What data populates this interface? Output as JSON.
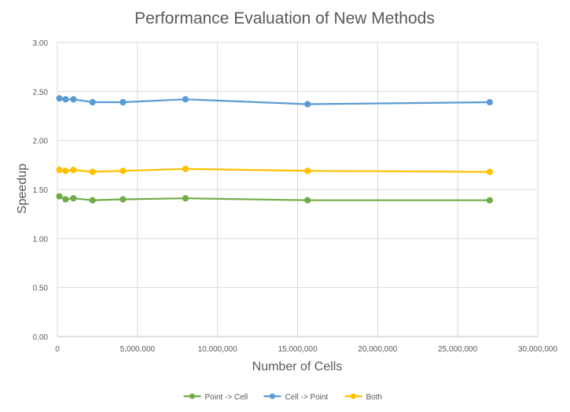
{
  "chart_data": {
    "type": "line",
    "title": "Performance Evaluation of New Methods",
    "xlabel": "Number of Cells",
    "ylabel": "Speedup",
    "xlim": [
      0,
      30000000
    ],
    "ylim": [
      0,
      3
    ],
    "x_ticks": [
      0,
      5000000,
      10000000,
      15000000,
      20000000,
      25000000,
      30000000
    ],
    "x_tick_labels": [
      "0",
      "5,000,000",
      "10,000,000",
      "15,000,000",
      "20,000,000",
      "25,000,000",
      "30,000,000"
    ],
    "y_ticks": [
      0,
      0.5,
      1,
      1.5,
      2,
      2.5,
      3
    ],
    "y_tick_labels": [
      "0.00",
      "0.50",
      "1.00",
      "1.50",
      "2.00",
      "2.50",
      "3.00"
    ],
    "grid": true,
    "legend_position": "bottom",
    "series": [
      {
        "name": "Point -> Cell",
        "color": "#70AD47",
        "x": [
          125000,
          512000,
          1000000,
          2197000,
          4096000,
          8000000,
          15625000,
          27000000
        ],
        "y": [
          1.43,
          1.4,
          1.41,
          1.39,
          1.4,
          1.41,
          1.39,
          1.39
        ]
      },
      {
        "name": "Cell -> Point",
        "color": "#5B9BD5",
        "x": [
          125000,
          512000,
          1000000,
          2197000,
          4096000,
          8000000,
          15625000,
          27000000
        ],
        "y": [
          2.43,
          2.42,
          2.42,
          2.39,
          2.39,
          2.42,
          2.37,
          2.39
        ]
      },
      {
        "name": "Both",
        "color": "#FFC000",
        "x": [
          125000,
          512000,
          1000000,
          2197000,
          4096000,
          8000000,
          15625000,
          27000000
        ],
        "y": [
          1.7,
          1.69,
          1.7,
          1.68,
          1.69,
          1.71,
          1.69,
          1.68
        ]
      }
    ]
  },
  "colors": {
    "grid": "#D9D9D9",
    "axis": "#BFBFBF",
    "text": "#595959"
  }
}
